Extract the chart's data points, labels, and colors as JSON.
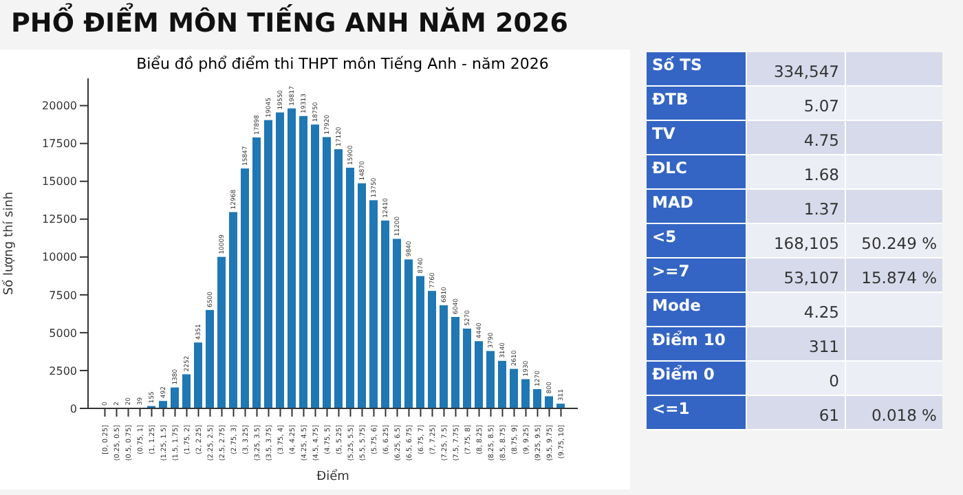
{
  "chart_data": [
    {
      "type": "bar",
      "title": "PHỔ ĐIỂM MÔN TIẾNG ANH NĂM 2026",
      "subtitle": "Biểu đồ phổ điểm thi THPT môn Tiếng Anh - năm 2026",
      "xlabel": "Điểm",
      "ylabel": "Số lượng thí sinh",
      "categories": [
        "[0, 0.25]",
        "(0.25, 0.5]",
        "(0.5, 0.75]",
        "(0.75, 1]",
        "(1, 1.25]",
        "(1.25, 1.5]",
        "(1.5, 1.75]",
        "(1.75, 2]",
        "(2, 2.25]",
        "(2.25, 2.5]",
        "(2.5, 2.75]",
        "(2.75, 3]",
        "(3, 3.25]",
        "(3.25, 3.5]",
        "(3.5, 3.75]",
        "(3.75, 4]",
        "(4, 4.25]",
        "(4.25, 4.5]",
        "(4.5, 4.75]",
        "(4.75, 5]",
        "(5, 5.25]",
        "(5.25, 5.5]",
        "(5.5, 5.75]",
        "(5.75, 6]",
        "(6, 6.25]",
        "(6.25, 6.5]",
        "(6.5, 6.75]",
        "(6.75, 7]",
        "(7, 7.25]",
        "(7.25, 7.5]",
        "(7.5, 7.75]",
        "(7.75, 8]",
        "(8, 8.25]",
        "(8.25, 8.5]",
        "(8.5, 8.75]",
        "(8.75, 9]",
        "(9, 9.25]",
        "(9.25, 9.5]",
        "(9.5, 9.75]",
        "(9.75, 10]"
      ],
      "values": [
        0,
        2,
        20,
        39,
        155,
        492,
        1380,
        2252,
        4351,
        6500,
        10009,
        12968,
        15847,
        17898,
        19045,
        19550,
        19817,
        19313,
        18750,
        17920,
        17120,
        15900,
        14870,
        13750,
        12410,
        11200,
        9840,
        8740,
        7760,
        6810,
        6040,
        5270,
        4440,
        3790,
        3140,
        2610,
        1930,
        1270,
        800,
        311
      ],
      "color": "#1f77b4",
      "ylim": [
        0,
        21800
      ],
      "yticks": [
        0,
        2500,
        5000,
        7500,
        10000,
        12500,
        15000,
        17500,
        20000
      ],
      "grid": false,
      "data_labels": true
    },
    {
      "type": "other",
      "categories": [
        "Số TS",
        "ĐTB",
        "TV",
        "ĐLC",
        "MAD",
        "<5",
        ">=7",
        "Mode",
        "Điểm 10",
        "Điểm 0",
        "<=1"
      ],
      "annotations": [
        {
          "text": "334,547",
          "y": "Số TS"
        },
        {
          "text": "5.07",
          "y": "ĐTB"
        },
        {
          "text": "4.75",
          "y": "TV"
        },
        {
          "text": "1.68",
          "y": "ĐLC"
        },
        {
          "text": "1.37",
          "y": "MAD"
        },
        {
          "text": "168,105",
          "y": "<5"
        },
        {
          "text": "50.249 %",
          "y": "<5"
        },
        {
          "text": "53,107",
          "y": ">=7"
        },
        {
          "text": "15.874 %",
          "y": ">=7"
        },
        {
          "text": "4.25",
          "y": "Mode"
        },
        {
          "text": "311",
          "y": "Điểm 10"
        },
        {
          "text": "0",
          "y": "Điểm 0"
        },
        {
          "text": "61",
          "y": "<=1"
        },
        {
          "text": "0.018 %",
          "y": "<=1"
        }
      ]
    }
  ]
}
